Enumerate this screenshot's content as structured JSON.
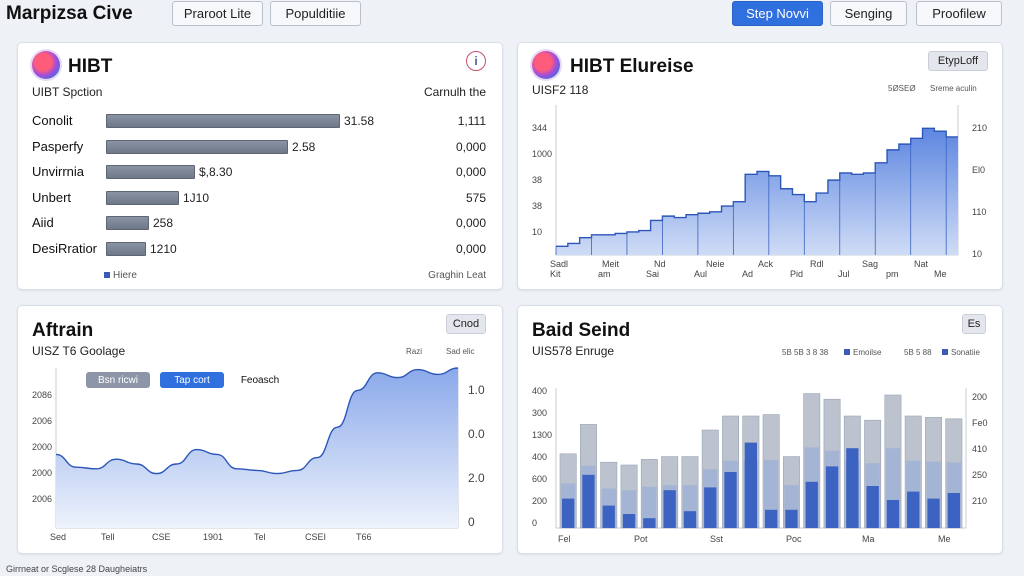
{
  "app": {
    "title": "Marpizsa Cive"
  },
  "toolbar": {
    "btn1": "Praroot Lite",
    "btn2": "Populditiie",
    "btn3": "Step Novvi",
    "btn4": "Senging",
    "btn5": "Proofilew"
  },
  "panel_hbar": {
    "title": "HIBT",
    "subtitle": "UIBT Spction",
    "right_header": "Carnulh the",
    "legend": "Hiere",
    "footer_right": "Graghin Leat",
    "info_icon": "i",
    "rows": [
      {
        "label": "Conolit",
        "value_text": "31.58",
        "right": "1,111",
        "fraction": 0.71
      },
      {
        "label": "Pasperfy",
        "value_text": "2.58",
        "right": "0,000",
        "fraction": 0.55
      },
      {
        "label": "Unvirrnia",
        "value_text": "$,8.30",
        "right": "0,000",
        "fraction": 0.27
      },
      {
        "label": "Unbert",
        "value_text": "1J10",
        "right": "575",
        "fraction": 0.22
      },
      {
        "label": "Aiid",
        "value_text": "258",
        "right": "0,000",
        "fraction": 0.13
      },
      {
        "label": "DesiRratior",
        "value_text": "1210",
        "right": "0,000",
        "fraction": 0.12
      }
    ]
  },
  "panel_step": {
    "title": "HIBT Elureise",
    "subtitle": "UISF2 118",
    "button": "EtypLoff",
    "legend_a": "5ØSEØ",
    "legend_b": "Sreme aculin",
    "y_left": [
      "344",
      "1000",
      "38",
      "38",
      "10"
    ],
    "y_right": [
      "210",
      "El0",
      "110",
      "10"
    ],
    "x_top": [
      "Sadl",
      "Meit",
      "Nd",
      "Neie",
      "Ack",
      "Rdl",
      "Sag",
      "Nat"
    ],
    "x_bottom": [
      "Kit",
      "am",
      "Sai",
      "Aul",
      "Ad",
      "Pid",
      "Jul",
      "pm",
      "Me"
    ]
  },
  "panel_area": {
    "title": "Aftrain",
    "subtitle": "UISZ T6 Goolage",
    "button": "Cnod",
    "legend_a": "Razi",
    "legend_b": "Sad elic",
    "pills": [
      "Bsn ricwi",
      "Tap cort",
      "Feoasch"
    ],
    "y_left": [
      "2086",
      "2006",
      "2000",
      "2000",
      "2006"
    ],
    "y_right": [
      "1.0",
      "0.0",
      "2.0",
      "0"
    ],
    "x_labels": [
      "Sed",
      "Tell",
      "CSE",
      "1901",
      "Tel",
      "CSEI",
      "T66"
    ]
  },
  "panel_bar": {
    "title": "Baid Seind",
    "subtitle": "UIS578 Enruge",
    "button": "Es",
    "legend_a": "5B 5B 3 8 38",
    "legend_b": "Emoilse",
    "legend_c": "5B 5 88",
    "legend_d": "Sonatiie",
    "y_left": [
      "400",
      "300",
      "1300",
      "400",
      "600",
      "200",
      "0"
    ],
    "y_right": [
      "200",
      "Fe0",
      "410",
      "250",
      "210"
    ],
    "x_labels": [
      "Fel",
      "Pot",
      "Sst",
      "Poc",
      "Ma",
      "Me"
    ]
  },
  "footer": {
    "text": "Girrneat or Scglese 28 Daugheiatrs"
  },
  "chart_data": [
    {
      "type": "bar",
      "title": "HIBT",
      "categories": [
        "Conolit",
        "Pasperfy",
        "Unvirrnia",
        "Unbert",
        "Aiid",
        "DesiRratior"
      ],
      "series": [
        {
          "name": "Hiere",
          "values": [
            0.71,
            0.55,
            0.27,
            0.22,
            0.13,
            0.12
          ]
        }
      ]
    },
    {
      "type": "area",
      "title": "HIBT Elureise",
      "values": [
        0.06,
        0.08,
        0.12,
        0.14,
        0.14,
        0.15,
        0.16,
        0.17,
        0.24,
        0.27,
        0.26,
        0.28,
        0.29,
        0.3,
        0.34,
        0.37,
        0.56,
        0.58,
        0.55,
        0.46,
        0.42,
        0.37,
        0.43,
        0.52,
        0.57,
        0.56,
        0.57,
        0.64,
        0.73,
        0.77,
        0.81,
        0.88,
        0.86,
        0.82
      ]
    },
    {
      "type": "area",
      "title": "Aftrain",
      "values": [
        0.46,
        0.38,
        0.37,
        0.43,
        0.4,
        0.34,
        0.4,
        0.49,
        0.46,
        0.37,
        0.36,
        0.34,
        0.36,
        0.44,
        0.63,
        0.86,
        0.97,
        0.94,
        0.99,
        0.96,
        1.0
      ]
    },
    {
      "type": "bar",
      "title": "Baid Seind",
      "series": [
        {
          "name": "gray",
          "values": [
            0.53,
            0.74,
            0.47,
            0.45,
            0.49,
            0.51,
            0.51,
            0.7,
            0.8,
            0.8,
            0.81,
            0.51,
            0.96,
            0.92,
            0.8,
            0.77,
            0.95,
            0.8,
            0.79,
            0.78
          ]
        },
        {
          "name": "blue",
          "values": [
            0.21,
            0.38,
            0.16,
            0.1,
            0.07,
            0.27,
            0.12,
            0.29,
            0.4,
            0.61,
            0.13,
            0.13,
            0.33,
            0.44,
            0.57,
            0.3,
            0.2,
            0.26,
            0.21,
            0.25
          ]
        }
      ]
    }
  ]
}
